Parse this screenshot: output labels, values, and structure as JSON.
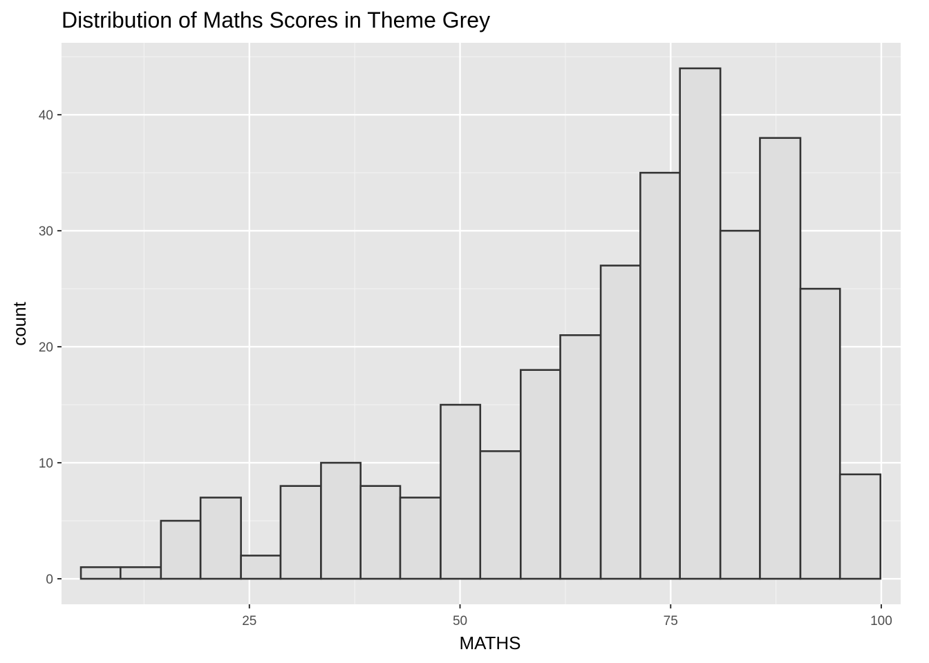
{
  "chart_data": {
    "type": "bar",
    "title": "Distribution of Maths Scores in Theme Grey",
    "xlabel": "MATHS",
    "ylabel": "count",
    "x_ticks": [
      25,
      50,
      75,
      100
    ],
    "y_ticks": [
      0,
      10,
      20,
      30,
      40
    ],
    "xlim": [
      2.7,
      102.3
    ],
    "ylim": [
      -2.2,
      46.2
    ],
    "grid": true,
    "bin_edges": [
      5.0,
      9.7,
      14.5,
      19.2,
      24.0,
      28.7,
      33.5,
      38.2,
      42.9,
      47.7,
      52.4,
      57.2,
      61.9,
      66.7,
      71.4,
      76.1,
      80.9,
      85.6,
      90.4,
      95.1,
      99.9
    ],
    "values": [
      1,
      1,
      5,
      7,
      2,
      8,
      10,
      8,
      7,
      15,
      11,
      18,
      21,
      27,
      35,
      44,
      30,
      38,
      25,
      9
    ],
    "colors": {
      "panel_background": "#e6e6e6",
      "grid_major": "#ffffff",
      "grid_minor": "#f2f2f2",
      "bar_fill": "#dedede",
      "bar_outline": "#333333"
    }
  }
}
